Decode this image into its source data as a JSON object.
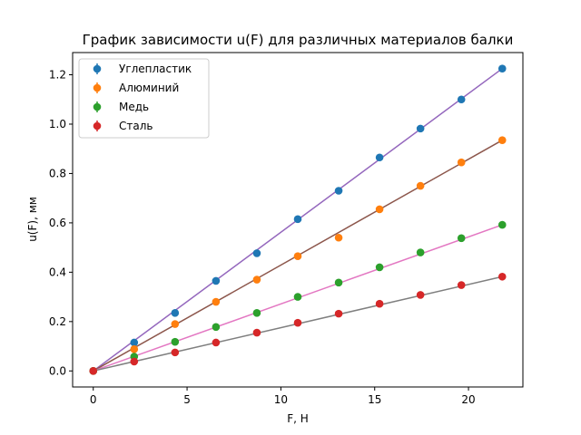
{
  "chart_data": {
    "type": "scatter",
    "title": "График зависимости u(F) для различных материалов балки",
    "xlabel": "F, Н",
    "ylabel": "u(F), мм",
    "xlim": [
      -1.1,
      22.9
    ],
    "ylim": [
      -0.065,
      1.29
    ],
    "xticks": [
      0,
      5,
      10,
      15,
      20
    ],
    "yticks": [
      0.0,
      0.2,
      0.4,
      0.6,
      0.8,
      1.0,
      1.2
    ],
    "grid": false,
    "legend_position": "top-left",
    "x": [
      0,
      2.18,
      4.36,
      6.54,
      8.72,
      10.9,
      13.08,
      15.26,
      17.44,
      19.62,
      21.8
    ],
    "series": [
      {
        "name": "Углепластик",
        "color": "#1f77b4",
        "fit_color": "#9467bd",
        "y": [
          0.0,
          0.115,
          0.235,
          0.365,
          0.477,
          0.615,
          0.73,
          0.865,
          0.982,
          1.1,
          1.225
        ],
        "fit": [
          0.0,
          1.225
        ]
      },
      {
        "name": "Алюминий",
        "color": "#ff7f0e",
        "fit_color": "#8c564b",
        "y": [
          0.0,
          0.088,
          0.19,
          0.28,
          0.37,
          0.465,
          0.54,
          0.655,
          0.75,
          0.845,
          0.935
        ],
        "fit": [
          0.0,
          0.935
        ]
      },
      {
        "name": "Медь",
        "color": "#2ca02c",
        "fit_color": "#e377c2",
        "y": [
          0.0,
          0.058,
          0.118,
          0.178,
          0.235,
          0.3,
          0.358,
          0.42,
          0.48,
          0.538,
          0.592
        ],
        "fit": [
          0.0,
          0.592
        ]
      },
      {
        "name": "Сталь",
        "color": "#d62728",
        "fit_color": "#7f7f7f",
        "y": [
          0.0,
          0.038,
          0.075,
          0.115,
          0.155,
          0.195,
          0.232,
          0.272,
          0.308,
          0.348,
          0.382
        ],
        "fit": [
          0.0,
          0.382
        ]
      }
    ]
  }
}
